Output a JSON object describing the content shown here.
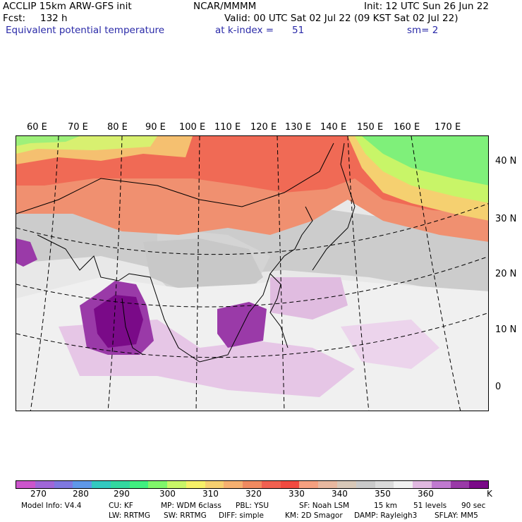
{
  "header": {
    "model": "ACCLIP 15km ARW-GFS init",
    "org": "NCAR/MMMM",
    "init": "Init: 12 UTC Sun 26 Jun 22",
    "fcst_label": "Fcst:",
    "fcst_value": "132 h",
    "valid": "Valid: 00 UTC Sat 02 Jul 22 (09 KST Sat 02 Jul 22)",
    "field": "Equivalent potential temperature",
    "level": "at k-index =",
    "level_value": "51",
    "smooth": "sm= 2"
  },
  "map": {
    "lon_labels": [
      "60 E",
      "70 E",
      "80 E",
      "90 E",
      "100 E",
      "110 E",
      "120 E",
      "130 E",
      "140 E",
      "150 E",
      "160 E",
      "170 E"
    ],
    "lat_labels": [
      "40 N",
      "30 N",
      "20 N",
      "10 N",
      "0"
    ]
  },
  "colorbar": {
    "colors": [
      "#cc55cc",
      "#a066d8",
      "#7f78e0",
      "#5f98e8",
      "#33c9c0",
      "#33d8a0",
      "#40ef80",
      "#80f56a",
      "#c8f568",
      "#f5f068",
      "#f5d070",
      "#f5b070",
      "#f08a60",
      "#f06050",
      "#f04a40",
      "#f5a080",
      "#e8b8a0",
      "#d8c8b8",
      "#cacaca",
      "#dadada",
      "#f0f0f0",
      "#e0b8e0",
      "#c07ad0",
      "#9a3aa8",
      "#7a0a88"
    ],
    "ticks": [
      "270",
      "280",
      "290",
      "300",
      "310",
      "320",
      "330",
      "340",
      "350",
      "360"
    ],
    "unit": "K"
  },
  "model_info": {
    "line1": [
      "Model Info: V4.4",
      "CU: KF",
      "MP: WDM 6class",
      "PBL: YSU",
      "SF: Noah LSM",
      "15 km",
      "51 levels",
      "90 sec"
    ],
    "line2": [
      "LW: RRTMG",
      "SW: RRTMG",
      "DIFF: simple",
      "KM: 2D Smagor",
      "DAMP: Rayleigh3",
      "SFLAY: MM5"
    ]
  }
}
